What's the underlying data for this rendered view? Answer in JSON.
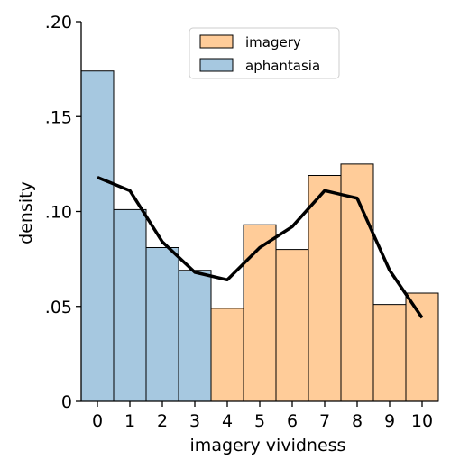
{
  "chart_data": {
    "type": "bar",
    "xlabel": "imagery vividness",
    "ylabel": "density",
    "xlim": [
      -0.5,
      10.5
    ],
    "ylim": [
      0,
      0.2
    ],
    "x_ticks": [
      "0",
      "1",
      "2",
      "3",
      "4",
      "5",
      "6",
      "7",
      "8",
      "9",
      "10"
    ],
    "y_ticks": [
      {
        "value": 0,
        "label": "0"
      },
      {
        "value": 0.05,
        "label": ".05"
      },
      {
        "value": 0.1,
        "label": ".10"
      },
      {
        "value": 0.15,
        "label": ".15"
      },
      {
        "value": 0.2,
        "label": ".20"
      }
    ],
    "legend_position": "top-center",
    "series": [
      {
        "name": "imagery",
        "type": "bar",
        "color": "#ffcc99",
        "x": [
          4,
          5,
          6,
          7,
          8,
          9,
          10
        ],
        "values": [
          0.049,
          0.093,
          0.08,
          0.119,
          0.125,
          0.051,
          0.057
        ]
      },
      {
        "name": "aphantasia",
        "type": "bar",
        "color": "#a6c8e0",
        "x": [
          0,
          1,
          2,
          3
        ],
        "values": [
          0.174,
          0.101,
          0.081,
          0.069
        ]
      },
      {
        "type": "line",
        "color": "#000000",
        "x": [
          0,
          1,
          2,
          3,
          4,
          5,
          6,
          7,
          8,
          9,
          10
        ],
        "values": [
          0.118,
          0.111,
          0.084,
          0.068,
          0.064,
          0.081,
          0.092,
          0.111,
          0.107,
          0.069,
          0.044
        ]
      }
    ]
  }
}
